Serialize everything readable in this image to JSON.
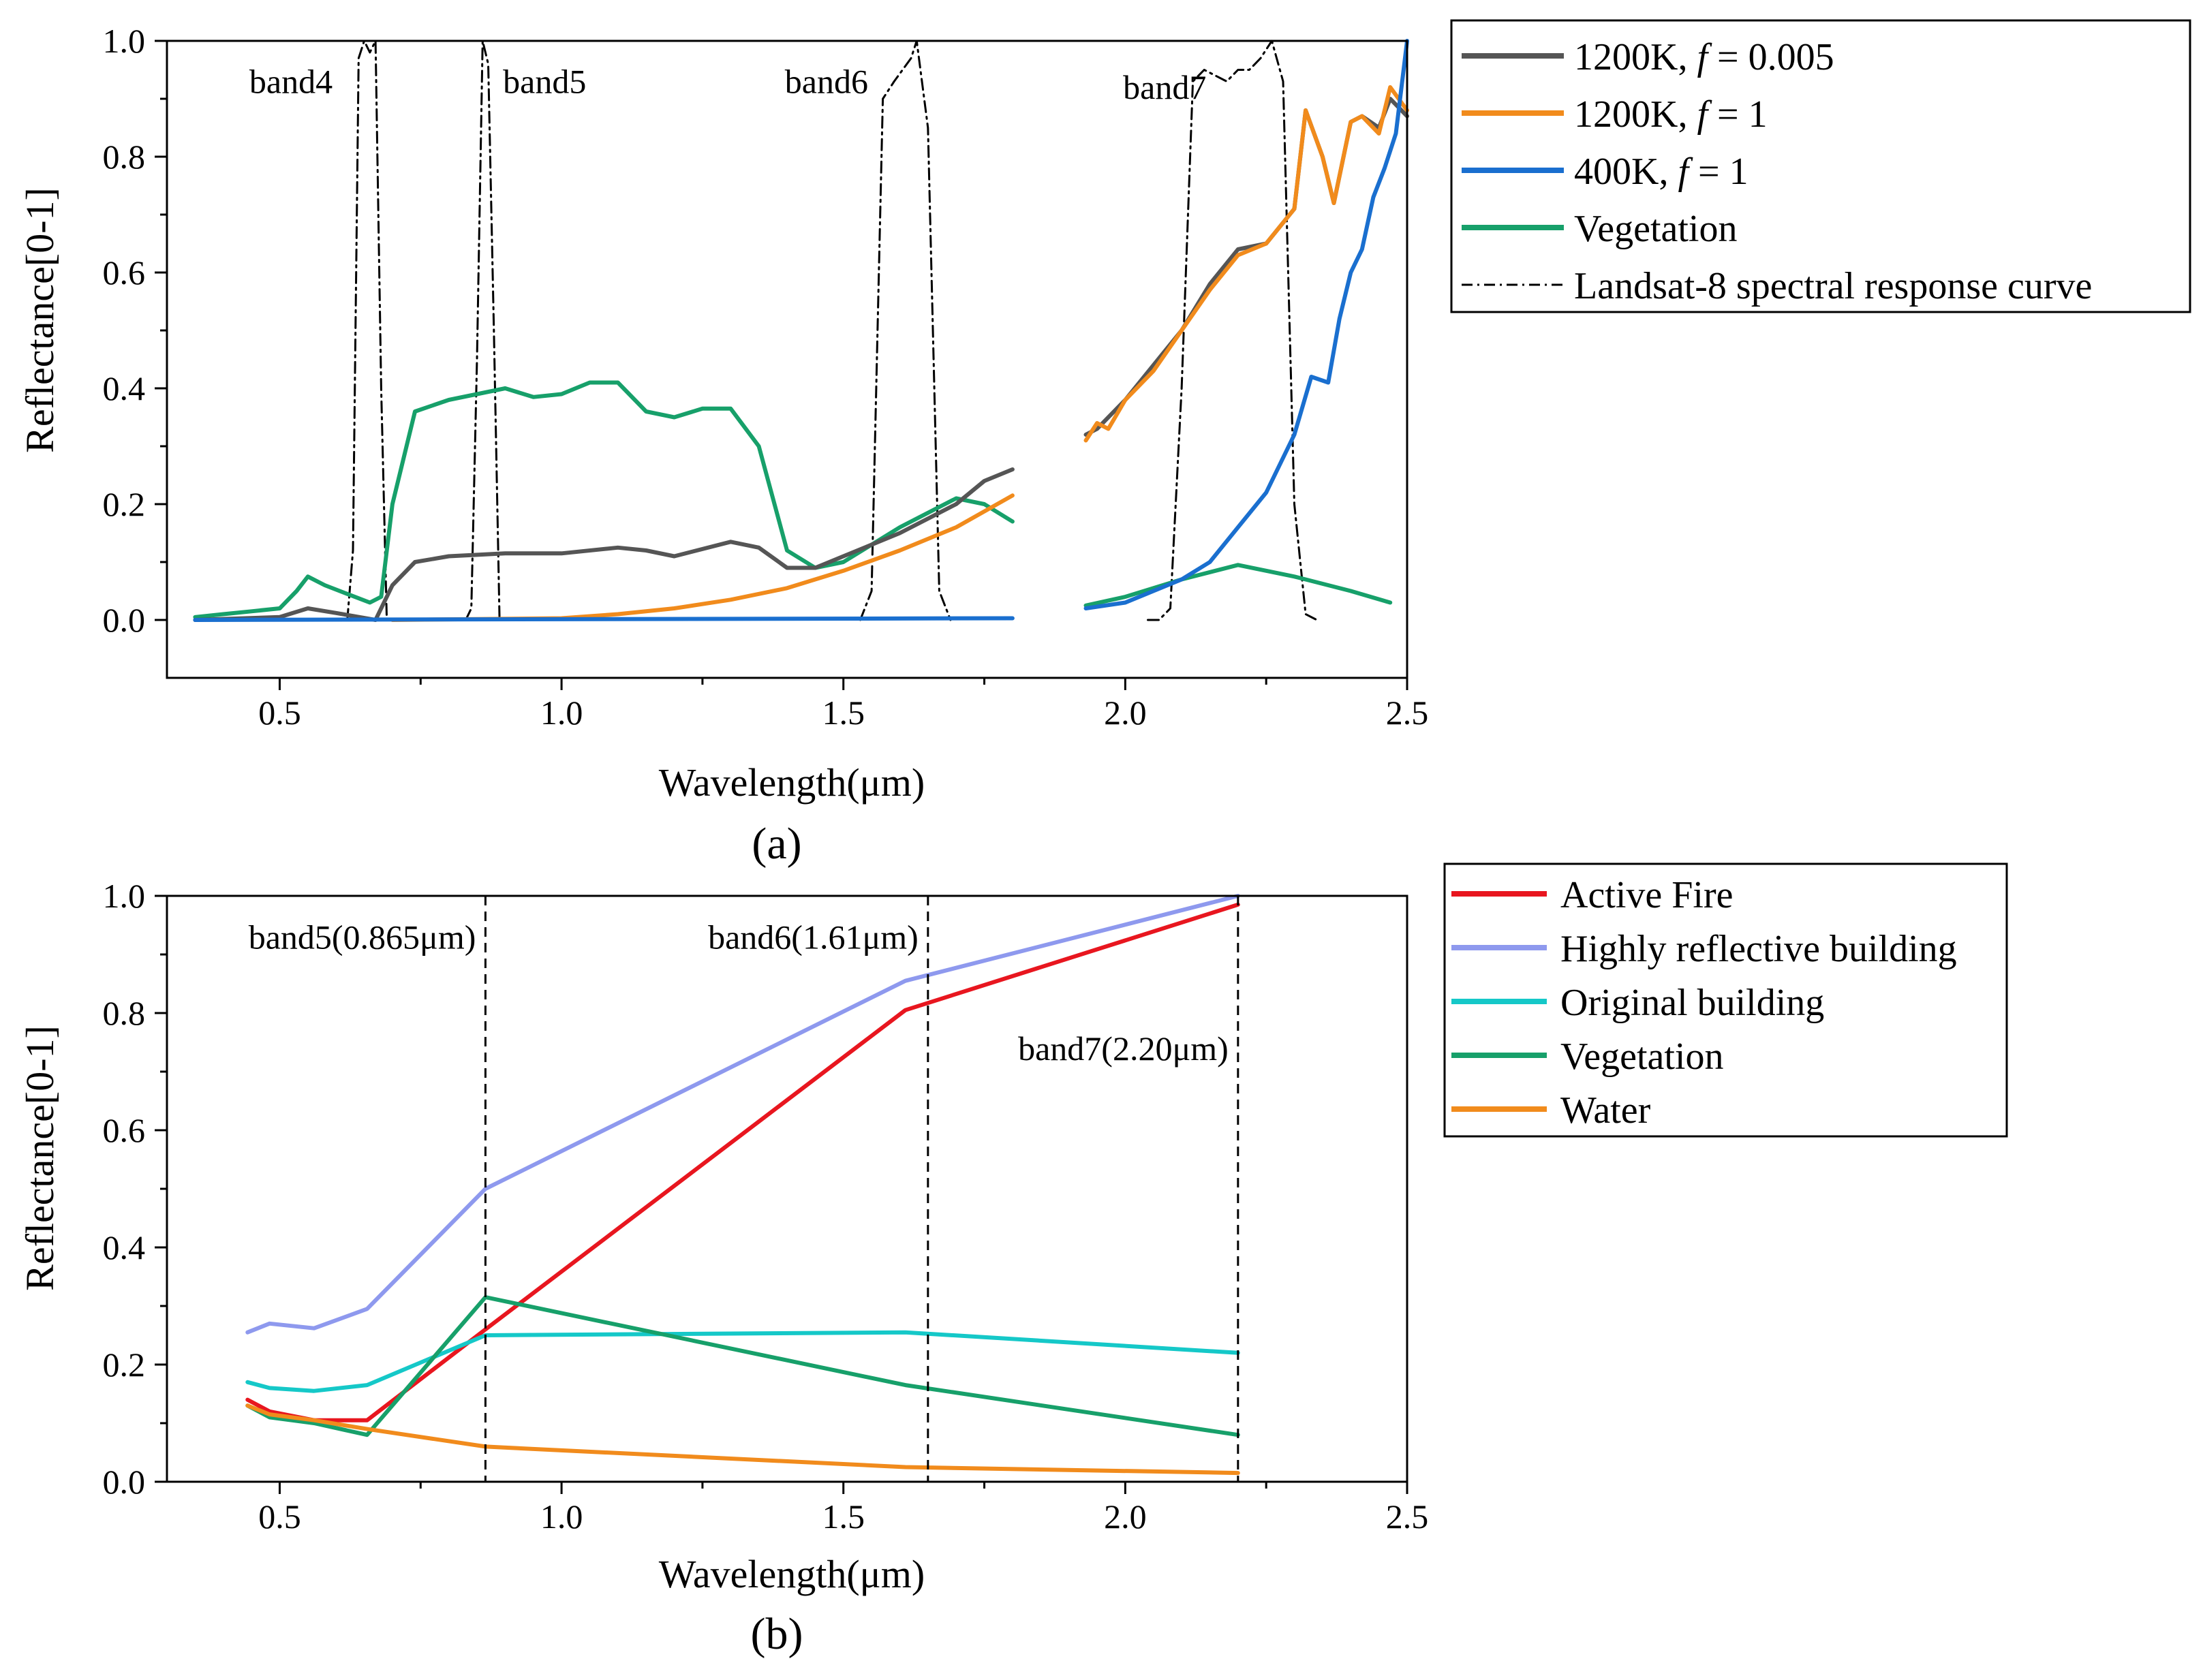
{
  "chart_data": [
    {
      "panel": "(a)",
      "type": "line",
      "xlabel": "Wavelength(μm)",
      "ylabel": "Reflectance[0-1]",
      "xlim": [
        0.3,
        2.5
      ],
      "ylim": [
        -0.1,
        1.0
      ],
      "xticks": [
        "0.5",
        "1.0",
        "1.5",
        "2.0",
        "2.5"
      ],
      "yticks": [
        "0.0",
        "0.2",
        "0.4",
        "0.6",
        "0.8",
        "1.0"
      ],
      "band_labels": [
        {
          "text": "band4",
          "x": 0.52,
          "y": 0.91
        },
        {
          "text": "band5",
          "x": 0.97,
          "y": 0.91
        },
        {
          "text": "band6",
          "x": 1.47,
          "y": 0.91
        },
        {
          "text": "band7",
          "x": 2.07,
          "y": 0.9
        }
      ],
      "legend": [
        {
          "name": "1200K, ",
          "italic": "f",
          "suffix": " = 0.005",
          "color": "#555555",
          "dash": "solid"
        },
        {
          "name": "1200K, ",
          "italic": "f",
          "suffix": " = 1",
          "color": "#f18b1c",
          "dash": "solid"
        },
        {
          "name": "400K, ",
          "italic": "f",
          "suffix": " = 1",
          "color": "#1a6fcf",
          "dash": "solid"
        },
        {
          "name": "Vegetation",
          "italic": "",
          "suffix": "",
          "color": "#17a06a",
          "dash": "solid"
        },
        {
          "name": "Landsat-8 spectral response curve",
          "italic": "",
          "suffix": "",
          "color": "#000000",
          "dash": "dashdot"
        }
      ],
      "series": [
        {
          "name": "Landsat-8 spectral response curve",
          "color": "#000000",
          "dash": "dashdot",
          "width": 3,
          "segments": [
            [
              [
                0.62,
                0.0
              ],
              [
                0.63,
                0.12
              ],
              [
                0.64,
                0.97
              ],
              [
                0.65,
                1.0
              ],
              [
                0.66,
                0.98
              ],
              [
                0.67,
                1.0
              ],
              [
                0.68,
                0.4
              ],
              [
                0.69,
                0.0
              ]
            ],
            [
              [
                0.83,
                0.0
              ],
              [
                0.84,
                0.02
              ],
              [
                0.85,
                0.45
              ],
              [
                0.86,
                1.0
              ],
              [
                0.87,
                0.96
              ],
              [
                0.88,
                0.5
              ],
              [
                0.89,
                0.0
              ]
            ],
            [
              [
                1.53,
                0.0
              ],
              [
                1.55,
                0.05
              ],
              [
                1.57,
                0.9
              ],
              [
                1.59,
                0.93
              ],
              [
                1.62,
                0.97
              ],
              [
                1.63,
                1.0
              ],
              [
                1.65,
                0.85
              ],
              [
                1.67,
                0.05
              ],
              [
                1.69,
                0.0
              ]
            ],
            [
              [
                2.04,
                0.0
              ],
              [
                2.06,
                0.0
              ],
              [
                2.08,
                0.02
              ],
              [
                2.1,
                0.4
              ],
              [
                2.12,
                0.93
              ],
              [
                2.14,
                0.95
              ],
              [
                2.16,
                0.94
              ],
              [
                2.18,
                0.93
              ],
              [
                2.2,
                0.95
              ],
              [
                2.22,
                0.95
              ],
              [
                2.24,
                0.97
              ],
              [
                2.26,
                1.0
              ],
              [
                2.28,
                0.93
              ],
              [
                2.3,
                0.2
              ],
              [
                2.32,
                0.01
              ],
              [
                2.34,
                0.0
              ]
            ]
          ]
        },
        {
          "name": "Vegetation",
          "color": "#17a06a",
          "dash": "solid",
          "width": 6,
          "segments": [
            [
              [
                0.35,
                0.005
              ],
              [
                0.4,
                0.01
              ],
              [
                0.45,
                0.015
              ],
              [
                0.5,
                0.02
              ],
              [
                0.53,
                0.05
              ],
              [
                0.55,
                0.075
              ],
              [
                0.58,
                0.06
              ],
              [
                0.62,
                0.045
              ],
              [
                0.66,
                0.03
              ],
              [
                0.68,
                0.04
              ],
              [
                0.7,
                0.2
              ],
              [
                0.74,
                0.36
              ],
              [
                0.8,
                0.38
              ],
              [
                0.9,
                0.4
              ],
              [
                0.95,
                0.385
              ],
              [
                1.0,
                0.39
              ],
              [
                1.05,
                0.41
              ],
              [
                1.1,
                0.41
              ],
              [
                1.15,
                0.36
              ],
              [
                1.2,
                0.35
              ],
              [
                1.25,
                0.365
              ],
              [
                1.3,
                0.365
              ],
              [
                1.35,
                0.3
              ],
              [
                1.4,
                0.12
              ],
              [
                1.45,
                0.09
              ],
              [
                1.5,
                0.1
              ],
              [
                1.6,
                0.16
              ],
              [
                1.7,
                0.21
              ],
              [
                1.75,
                0.2
              ],
              [
                1.8,
                0.17
              ]
            ],
            [
              [
                1.93,
                0.025
              ],
              [
                2.0,
                0.04
              ],
              [
                2.1,
                0.07
              ],
              [
                2.2,
                0.095
              ],
              [
                2.3,
                0.075
              ],
              [
                2.4,
                0.05
              ],
              [
                2.47,
                0.03
              ]
            ]
          ]
        },
        {
          "name": "1200K, f = 0.005",
          "color": "#555555",
          "dash": "solid",
          "width": 6,
          "segments": [
            [
              [
                0.35,
                0.0
              ],
              [
                0.5,
                0.005
              ],
              [
                0.55,
                0.02
              ],
              [
                0.6,
                0.012
              ],
              [
                0.67,
                0.0
              ],
              [
                0.7,
                0.06
              ],
              [
                0.74,
                0.1
              ],
              [
                0.8,
                0.11
              ],
              [
                0.9,
                0.115
              ],
              [
                1.0,
                0.115
              ],
              [
                1.1,
                0.125
              ],
              [
                1.15,
                0.12
              ],
              [
                1.2,
                0.11
              ],
              [
                1.3,
                0.135
              ],
              [
                1.35,
                0.125
              ],
              [
                1.4,
                0.09
              ],
              [
                1.45,
                0.09
              ],
              [
                1.5,
                0.11
              ],
              [
                1.6,
                0.15
              ],
              [
                1.7,
                0.2
              ],
              [
                1.75,
                0.24
              ],
              [
                1.8,
                0.26
              ]
            ],
            [
              [
                1.93,
                0.32
              ],
              [
                1.95,
                0.33
              ],
              [
                2.0,
                0.38
              ],
              [
                2.05,
                0.44
              ],
              [
                2.1,
                0.5
              ],
              [
                2.15,
                0.58
              ],
              [
                2.2,
                0.64
              ],
              [
                2.25,
                0.65
              ],
              [
                2.3,
                0.71
              ],
              [
                2.32,
                0.88
              ],
              [
                2.35,
                0.8
              ],
              [
                2.37,
                0.72
              ],
              [
                2.4,
                0.86
              ],
              [
                2.42,
                0.87
              ],
              [
                2.45,
                0.85
              ],
              [
                2.47,
                0.9
              ],
              [
                2.5,
                0.87
              ]
            ]
          ]
        },
        {
          "name": "1200K, f = 1",
          "color": "#f18b1c",
          "dash": "solid",
          "width": 6,
          "segments": [
            [
              [
                0.7,
                0.0
              ],
              [
                1.0,
                0.003
              ],
              [
                1.1,
                0.01
              ],
              [
                1.2,
                0.02
              ],
              [
                1.3,
                0.035
              ],
              [
                1.4,
                0.055
              ],
              [
                1.5,
                0.085
              ],
              [
                1.6,
                0.12
              ],
              [
                1.7,
                0.16
              ],
              [
                1.8,
                0.215
              ]
            ],
            [
              [
                1.93,
                0.31
              ],
              [
                1.95,
                0.34
              ],
              [
                1.97,
                0.33
              ],
              [
                2.0,
                0.38
              ],
              [
                2.05,
                0.43
              ],
              [
                2.1,
                0.5
              ],
              [
                2.15,
                0.57
              ],
              [
                2.2,
                0.63
              ],
              [
                2.25,
                0.65
              ],
              [
                2.3,
                0.71
              ],
              [
                2.32,
                0.88
              ],
              [
                2.35,
                0.8
              ],
              [
                2.37,
                0.72
              ],
              [
                2.4,
                0.86
              ],
              [
                2.42,
                0.87
              ],
              [
                2.45,
                0.84
              ],
              [
                2.47,
                0.92
              ],
              [
                2.5,
                0.88
              ]
            ]
          ]
        },
        {
          "name": "400K, f = 1",
          "color": "#1a6fcf",
          "dash": "solid",
          "width": 6,
          "segments": [
            [
              [
                0.35,
                0.0
              ],
              [
                1.8,
                0.003
              ]
            ],
            [
              [
                1.93,
                0.02
              ],
              [
                2.0,
                0.03
              ],
              [
                2.05,
                0.05
              ],
              [
                2.1,
                0.07
              ],
              [
                2.15,
                0.1
              ],
              [
                2.2,
                0.16
              ],
              [
                2.25,
                0.22
              ],
              [
                2.3,
                0.32
              ],
              [
                2.33,
                0.42
              ],
              [
                2.36,
                0.41
              ],
              [
                2.38,
                0.52
              ],
              [
                2.4,
                0.6
              ],
              [
                2.42,
                0.64
              ],
              [
                2.44,
                0.73
              ],
              [
                2.46,
                0.78
              ],
              [
                2.48,
                0.84
              ],
              [
                2.5,
                1.0
              ]
            ]
          ]
        }
      ]
    },
    {
      "panel": "(b)",
      "type": "line",
      "xlabel": "Wavelength(μm)",
      "ylabel": "Reflectance[0-1]",
      "xlim": [
        0.3,
        2.5
      ],
      "ylim": [
        0.0,
        1.0
      ],
      "xticks": [
        "0.5",
        "1.0",
        "1.5",
        "2.0",
        "2.5"
      ],
      "yticks": [
        "0.0",
        "0.2",
        "0.4",
        "0.6",
        "0.8",
        "1.0"
      ],
      "band_markers": [
        {
          "text": "band5(0.865μm)",
          "x": 0.865,
          "label_y": 0.91
        },
        {
          "text": "band6(1.61μm)",
          "x": 1.65,
          "label_y": 0.91
        },
        {
          "text": "band7(2.20μm)",
          "x": 2.2,
          "label_y": 0.72
        }
      ],
      "legend": [
        {
          "name": "Active Fire",
          "color": "#e8161f"
        },
        {
          "name": "Highly reflective building",
          "color": "#8e99ee"
        },
        {
          "name": "Original building",
          "color": "#15c8c8"
        },
        {
          "name": "Vegetation",
          "color": "#17a06a"
        },
        {
          "name": "Water",
          "color": "#f18b1c"
        }
      ],
      "series": [
        {
          "name": "Highly reflective building",
          "color": "#8e99ee",
          "x": [
            0.443,
            0.482,
            0.561,
            0.655,
            0.865,
            1.61,
            2.2
          ],
          "y": [
            0.255,
            0.27,
            0.262,
            0.295,
            0.5,
            0.855,
            1.0
          ]
        },
        {
          "name": "Active Fire",
          "color": "#e8161f",
          "x": [
            0.443,
            0.482,
            0.561,
            0.655,
            0.865,
            1.61,
            2.2
          ],
          "y": [
            0.14,
            0.12,
            0.105,
            0.105,
            0.26,
            0.805,
            0.985
          ]
        },
        {
          "name": "Original building",
          "color": "#15c8c8",
          "x": [
            0.443,
            0.482,
            0.561,
            0.655,
            0.865,
            1.61,
            2.2
          ],
          "y": [
            0.17,
            0.16,
            0.155,
            0.165,
            0.25,
            0.255,
            0.22
          ]
        },
        {
          "name": "Vegetation",
          "color": "#17a06a",
          "x": [
            0.443,
            0.482,
            0.561,
            0.655,
            0.865,
            1.61,
            2.2
          ],
          "y": [
            0.13,
            0.11,
            0.1,
            0.08,
            0.315,
            0.165,
            0.08
          ]
        },
        {
          "name": "Water",
          "color": "#f18b1c",
          "x": [
            0.443,
            0.482,
            0.561,
            0.655,
            0.865,
            1.61,
            2.2
          ],
          "y": [
            0.13,
            0.115,
            0.105,
            0.09,
            0.06,
            0.025,
            0.015
          ]
        }
      ]
    }
  ]
}
